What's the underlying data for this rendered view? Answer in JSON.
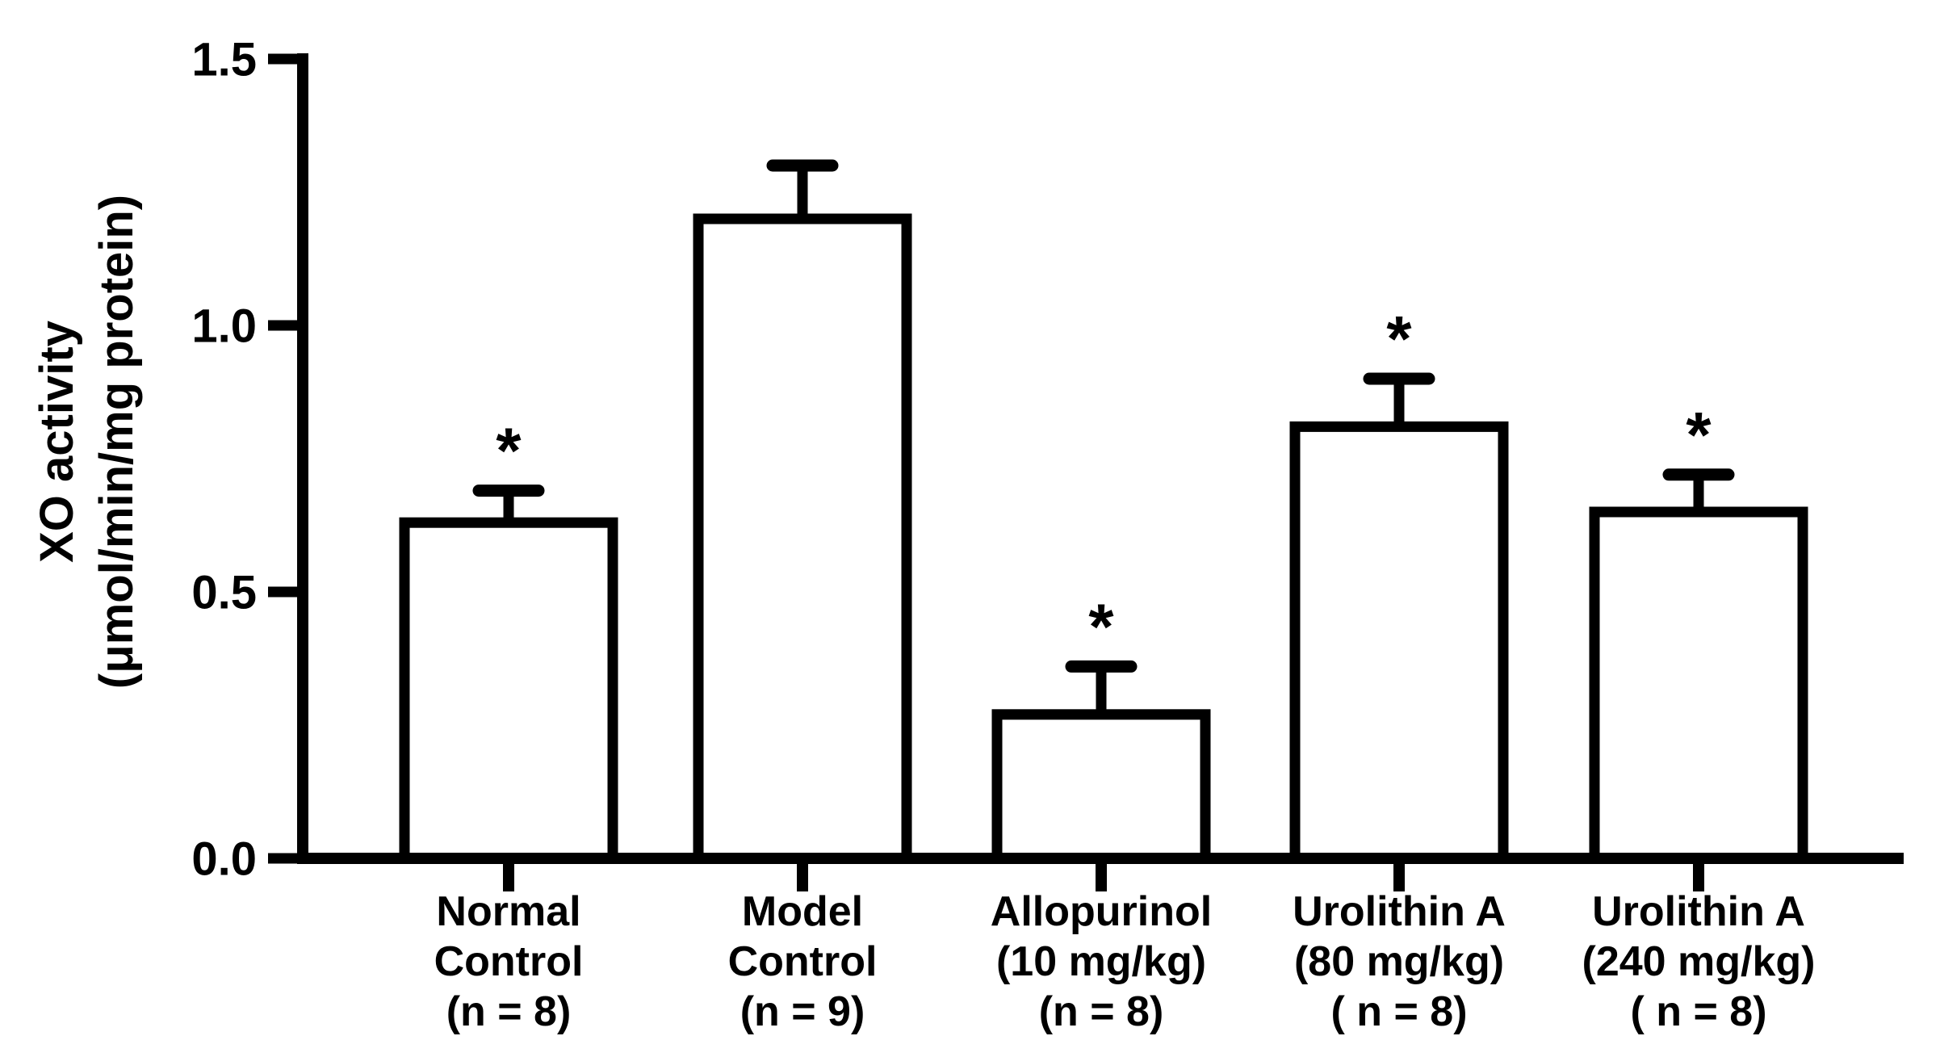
{
  "figure": {
    "background_color": "#ffffff",
    "ink_color": "#000000"
  },
  "chart_data": {
    "type": "bar",
    "title": "",
    "xlabel": "",
    "ylabel": "XO activity (μmol/min/mg protein)",
    "ylabel_lines": [
      "XO activity",
      "(μmol/min/mg protein)"
    ],
    "ylim": [
      0,
      1.5
    ],
    "ytick_labels": [
      "0.0",
      "0.5",
      "1.0",
      "1.5"
    ],
    "grid": false,
    "legend_position": "none",
    "bar_fill": "#ffffff",
    "bar_stroke": "#000000",
    "error_bars": "upper SEM with cap",
    "significance_marker": "*",
    "categories": [
      "Normal Control (n = 8)",
      "Model Control (n = 9)",
      "Allopurinol (10 mg/kg) (n = 8)",
      "Urolithin A (80 mg/kg) ( n = 8)",
      "Urolithin A (240 mg/kg) ( n = 8)"
    ],
    "category_label_lines": [
      [
        "Normal",
        "Control",
        "(n = 8)"
      ],
      [
        "Model",
        "Control",
        "(n = 9)"
      ],
      [
        "Allopurinol",
        "(10 mg/kg)",
        "(n = 8)"
      ],
      [
        "Urolithin A",
        "(80 mg/kg)",
        "( n = 8)"
      ],
      [
        "Urolithin A",
        "(240 mg/kg)",
        "( n = 8)"
      ]
    ],
    "values": [
      0.63,
      1.2,
      0.27,
      0.81,
      0.65
    ],
    "errors": [
      0.06,
      0.1,
      0.09,
      0.09,
      0.07
    ],
    "significant": [
      true,
      false,
      true,
      true,
      true
    ]
  }
}
